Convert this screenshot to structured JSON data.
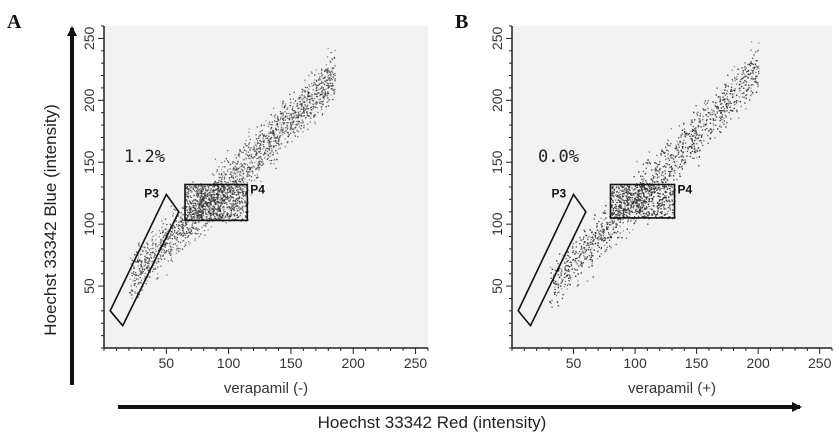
{
  "chart_data": [
    {
      "type": "scatter",
      "panel_label": "A",
      "xlabel": "verapamil (-)",
      "x_ticks": [
        50,
        100,
        150,
        200,
        250
      ],
      "y_ticks": [
        50,
        100,
        150,
        200,
        250
      ],
      "xlim": [
        0,
        260
      ],
      "ylim": [
        0,
        260
      ],
      "gates": [
        {
          "name": "P3",
          "shape": "polygon",
          "points": [
            [
              5,
              30
            ],
            [
              15,
              18
            ],
            [
              60,
              110
            ],
            [
              50,
              124
            ]
          ]
        },
        {
          "name": "P4",
          "shape": "rectangle",
          "x_range": [
            65,
            115
          ],
          "y_range": [
            103,
            132
          ]
        }
      ],
      "annotation": "1.2%",
      "population": {
        "slope": 1.0,
        "intercept": 35,
        "x_range": [
          20,
          185
        ],
        "core_x": [
          65,
          115
        ],
        "core_y": [
          103,
          132
        ]
      }
    },
    {
      "type": "scatter",
      "panel_label": "B",
      "xlabel": "verapamil (+)",
      "x_ticks": [
        50,
        100,
        150,
        200,
        250
      ],
      "y_ticks": [
        50,
        100,
        150,
        200,
        250
      ],
      "xlim": [
        0,
        260
      ],
      "ylim": [
        0,
        260
      ],
      "gates": [
        {
          "name": "P3",
          "shape": "polygon",
          "points": [
            [
              5,
              30
            ],
            [
              15,
              18
            ],
            [
              60,
              110
            ],
            [
              50,
              124
            ]
          ]
        },
        {
          "name": "P4",
          "shape": "rectangle",
          "x_range": [
            80,
            132
          ],
          "y_range": [
            105,
            132
          ]
        }
      ],
      "annotation": "0.0%",
      "population": {
        "slope": 1.05,
        "intercept": 16,
        "x_range": [
          30,
          200
        ],
        "core_x": [
          80,
          132
        ],
        "core_y": [
          105,
          132
        ]
      }
    }
  ],
  "shared_axes": {
    "x_label": "Hoechst 33342 Red (intensity)",
    "y_label": "Hoechst 33342 Blue (intensity)"
  },
  "colors": {
    "dots": "#333333",
    "frame": "#222222",
    "gate": "#111111",
    "arrow": "#111111"
  }
}
